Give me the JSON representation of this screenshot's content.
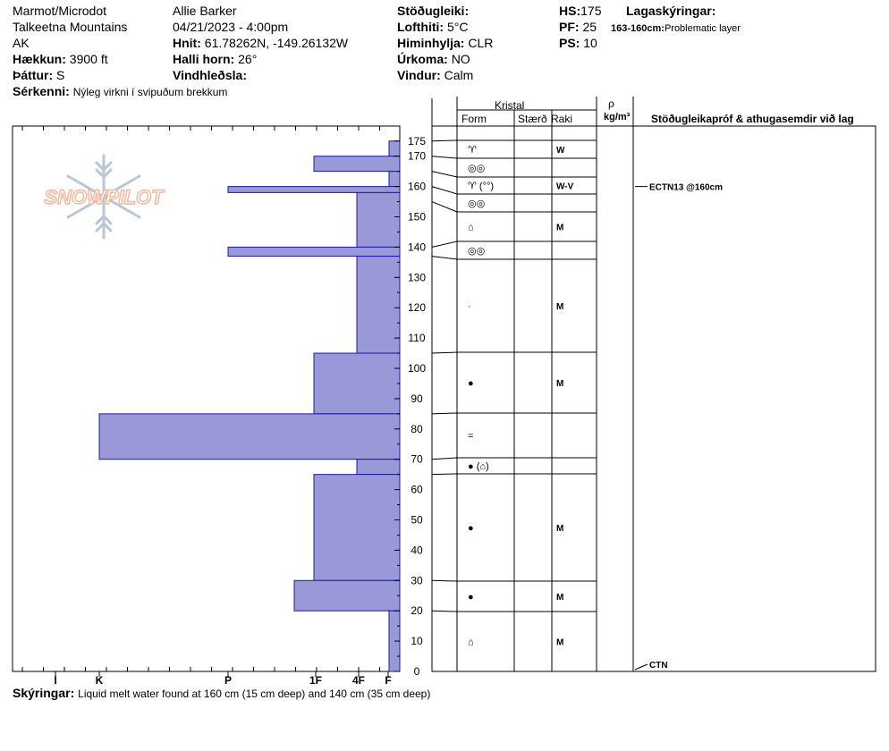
{
  "header": {
    "location": "Marmot/Microdot",
    "range": "Talkeetna Mountains",
    "state": "AK",
    "elevation_label": "Hækkun:",
    "elevation": "3900 ft",
    "aspect_label": "Þáttur:",
    "aspect": "S",
    "features_label": "Sérkenni:",
    "features": "Nýleg virkni í svipuðum brekkum",
    "observer": "Allie Barker",
    "datetime": "04/21/2023 - 4:00pm",
    "coords_label": "Hnit:",
    "coords": "61.78262N, -149.26132W",
    "slope_label": "Halli horn:",
    "slope": "26°",
    "wind_loading_label": "Vindhleðsla:",
    "stability_label": "Stöðugleiki:",
    "air_temp_label": "Lofthiti:",
    "air_temp": "5°C",
    "sky_label": "Himinhylja:",
    "sky": "CLR",
    "precip_label": "Úrkoma:",
    "precip": "NO",
    "wind_label": "Vindur:",
    "wind": "Calm",
    "hs_label": "HS:",
    "hs": "175",
    "pf_label": "PF:",
    "pf": "25",
    "ps_label": "PS:",
    "ps": "10",
    "legend_label": "Lagaskýringar:",
    "legend_range": "163-160cm:",
    "legend_text": "Problematic layer"
  },
  "columns": {
    "kristal": "Kristal",
    "form": "Form",
    "size": "Stærð",
    "moisture": "Raki",
    "rho": "ρ",
    "density_unit": "kg/m³",
    "tests": "Stöðugleikapróf & athugasemdir við lag"
  },
  "footer": {
    "label": "Skýringar:",
    "text": "Liquid melt water found at 160 cm (15 cm deep) and 140 cm (35 cm deep)"
  },
  "logo_text": "SNOWPILOT",
  "colors": {
    "bar_fill": "#9999d8",
    "bar_stroke": "#1a1aa0"
  },
  "chart_data": {
    "type": "bar",
    "orientation": "horizontal",
    "y_axis": {
      "range": [
        0,
        175
      ],
      "ticks": [
        0,
        10,
        20,
        30,
        40,
        50,
        60,
        70,
        80,
        90,
        100,
        110,
        120,
        130,
        140,
        150,
        160,
        170,
        175
      ]
    },
    "x_axis": {
      "categories": [
        "I",
        "K",
        "P",
        "1F",
        "4F",
        "F"
      ]
    },
    "hardness_layers": [
      {
        "top": 175,
        "bottom": 170,
        "hardness": "F"
      },
      {
        "top": 170,
        "bottom": 165,
        "hardness": "1F"
      },
      {
        "top": 165,
        "bottom": 160,
        "hardness": "F"
      },
      {
        "top": 160,
        "bottom": 158,
        "hardness": "P"
      },
      {
        "top": 158,
        "bottom": 140,
        "hardness": "4F"
      },
      {
        "top": 140,
        "bottom": 137,
        "hardness": "P"
      },
      {
        "top": 137,
        "bottom": 105,
        "hardness": "4F"
      },
      {
        "top": 105,
        "bottom": 85,
        "hardness": "1F"
      },
      {
        "top": 85,
        "bottom": 70,
        "hardness": "K"
      },
      {
        "top": 70,
        "bottom": 65,
        "hardness": "4F"
      },
      {
        "top": 65,
        "bottom": 30,
        "hardness": "1F"
      },
      {
        "top": 30,
        "bottom": 20,
        "hardness": "1F-P"
      },
      {
        "top": 20,
        "bottom": 0,
        "hardness": "F"
      }
    ],
    "crystal_layers": [
      {
        "top": 175,
        "bottom": 170,
        "form": "♈",
        "moisture": "W"
      },
      {
        "top": 170,
        "bottom": 165,
        "form": "◎◎",
        "moisture": ""
      },
      {
        "top": 165,
        "bottom": 160,
        "form": "♈ (°°)",
        "moisture": "W-V"
      },
      {
        "top": 160,
        "bottom": 155,
        "form": "◎◎",
        "moisture": ""
      },
      {
        "top": 155,
        "bottom": 140,
        "form": "⌂",
        "moisture": "M"
      },
      {
        "top": 140,
        "bottom": 137,
        "form": "◎◎",
        "moisture": ""
      },
      {
        "top": 137,
        "bottom": 105,
        "form": "·",
        "moisture": "M"
      },
      {
        "top": 105,
        "bottom": 85,
        "form": "●",
        "moisture": "M"
      },
      {
        "top": 85,
        "bottom": 70,
        "form": "=",
        "moisture": ""
      },
      {
        "top": 70,
        "bottom": 65,
        "form": "● (⌂)",
        "moisture": ""
      },
      {
        "top": 65,
        "bottom": 30,
        "form": "●",
        "moisture": "M"
      },
      {
        "top": 30,
        "bottom": 20,
        "form": "●",
        "moisture": "M"
      },
      {
        "top": 20,
        "bottom": 0,
        "form": "⌂",
        "moisture": "M"
      }
    ],
    "tests": [
      {
        "depth": 160,
        "label": "ECTN13 @160cm"
      },
      {
        "depth": 0,
        "label": "CTN"
      }
    ]
  }
}
